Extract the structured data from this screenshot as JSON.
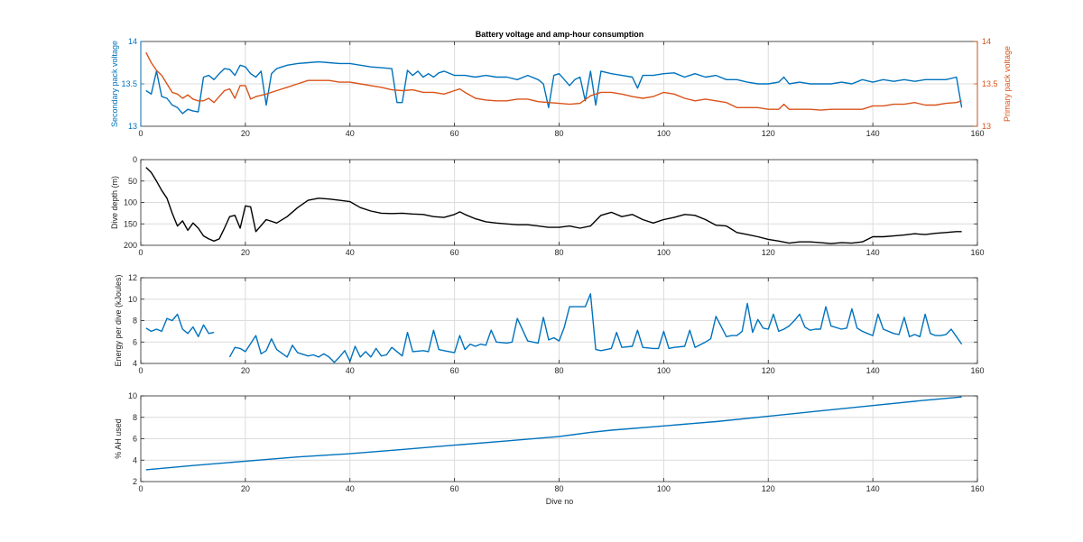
{
  "figure": {
    "title": "Battery voltage and amp-hour consumption",
    "xlabel": "Dive no"
  },
  "colors": {
    "secondary": "#0072BD",
    "primary": "#D95319",
    "depth": "#000000",
    "energy": "#0072BD",
    "ah": "#0072BD",
    "grid": "#dcdcdc",
    "axis": "#262626"
  },
  "chart_data": [
    {
      "type": "line",
      "title": "Battery voltage and amp-hour consumption",
      "xlabel": "",
      "ylabel": "Secondary pack voltage",
      "y2label": "Primary pack voltage",
      "xlim": [
        0,
        160
      ],
      "ylim": [
        13,
        14
      ],
      "y2lim": [
        13,
        14
      ],
      "xticks": [
        0,
        20,
        40,
        60,
        80,
        100,
        120,
        140,
        160
      ],
      "yticks": [
        13,
        13.5,
        14
      ],
      "yticklabels": [
        "13",
        "13.5",
        "14"
      ],
      "y2ticks": [
        13,
        13.5,
        14
      ],
      "y2ticklabels": [
        "13",
        "13.5",
        "14"
      ],
      "grid": true,
      "series": [
        {
          "axis": "left",
          "x": [
            1,
            2,
            3,
            4,
            5,
            6,
            7,
            8,
            9,
            10,
            11,
            12,
            13,
            14,
            15,
            16,
            17,
            18,
            19,
            20,
            21,
            22,
            23,
            24,
            25,
            26,
            28,
            30,
            32,
            34,
            36,
            38,
            40,
            42,
            44,
            46,
            48,
            49,
            50,
            51,
            52,
            53,
            54,
            55,
            56,
            57,
            58,
            60,
            62,
            64,
            66,
            68,
            70,
            72,
            74,
            76,
            77,
            78,
            79,
            80,
            81,
            82,
            83,
            84,
            85,
            86,
            87,
            88,
            90,
            92,
            94,
            95,
            96,
            98,
            100,
            102,
            104,
            106,
            108,
            110,
            112,
            114,
            116,
            118,
            120,
            122,
            123,
            124,
            126,
            128,
            130,
            132,
            134,
            136,
            138,
            140,
            142,
            144,
            146,
            148,
            150,
            152,
            154,
            156,
            157
          ],
          "y": [
            13.42,
            13.38,
            13.65,
            13.35,
            13.33,
            13.25,
            13.22,
            13.15,
            13.2,
            13.18,
            13.17,
            13.58,
            13.6,
            13.55,
            13.62,
            13.68,
            13.67,
            13.6,
            13.72,
            13.7,
            13.62,
            13.58,
            13.65,
            13.25,
            13.62,
            13.68,
            13.72,
            13.74,
            13.75,
            13.76,
            13.75,
            13.74,
            13.74,
            13.72,
            13.7,
            13.69,
            13.68,
            13.28,
            13.28,
            13.66,
            13.6,
            13.65,
            13.58,
            13.62,
            13.58,
            13.63,
            13.65,
            13.6,
            13.6,
            13.58,
            13.6,
            13.58,
            13.58,
            13.55,
            13.6,
            13.55,
            13.5,
            13.22,
            13.6,
            13.62,
            13.55,
            13.48,
            13.55,
            13.58,
            13.3,
            13.65,
            13.25,
            13.65,
            13.62,
            13.6,
            13.58,
            13.45,
            13.6,
            13.6,
            13.62,
            13.63,
            13.58,
            13.62,
            13.58,
            13.6,
            13.55,
            13.55,
            13.52,
            13.5,
            13.5,
            13.52,
            13.58,
            13.5,
            13.52,
            13.5,
            13.5,
            13.5,
            13.52,
            13.5,
            13.55,
            13.52,
            13.55,
            13.53,
            13.55,
            13.53,
            13.55,
            13.55,
            13.55,
            13.58,
            13.22
          ]
        },
        {
          "axis": "right",
          "x": [
            1,
            2,
            3,
            4,
            5,
            6,
            7,
            8,
            9,
            10,
            11,
            12,
            13,
            14,
            15,
            16,
            17,
            18,
            19,
            20,
            21,
            22,
            24,
            26,
            28,
            30,
            32,
            34,
            36,
            38,
            40,
            42,
            44,
            46,
            48,
            50,
            52,
            54,
            56,
            58,
            60,
            61,
            62,
            64,
            66,
            68,
            70,
            72,
            74,
            76,
            78,
            80,
            82,
            84,
            86,
            88,
            90,
            92,
            94,
            96,
            98,
            100,
            102,
            104,
            106,
            108,
            110,
            112,
            114,
            116,
            118,
            120,
            122,
            123,
            124,
            126,
            128,
            130,
            132,
            134,
            136,
            138,
            140,
            142,
            144,
            146,
            148,
            150,
            152,
            154,
            156,
            157
          ],
          "y": [
            13.87,
            13.75,
            13.66,
            13.6,
            13.5,
            13.4,
            13.38,
            13.33,
            13.37,
            13.32,
            13.3,
            13.3,
            13.33,
            13.28,
            13.35,
            13.42,
            13.44,
            13.33,
            13.48,
            13.48,
            13.32,
            13.35,
            13.38,
            13.42,
            13.46,
            13.5,
            13.54,
            13.54,
            13.54,
            13.52,
            13.52,
            13.5,
            13.48,
            13.46,
            13.43,
            13.42,
            13.43,
            13.4,
            13.4,
            13.38,
            13.42,
            13.44,
            13.4,
            13.33,
            13.31,
            13.3,
            13.3,
            13.32,
            13.32,
            13.29,
            13.28,
            13.27,
            13.26,
            13.27,
            13.36,
            13.4,
            13.4,
            13.38,
            13.35,
            13.33,
            13.35,
            13.4,
            13.38,
            13.33,
            13.3,
            13.32,
            13.3,
            13.28,
            13.22,
            13.22,
            13.22,
            13.2,
            13.2,
            13.26,
            13.2,
            13.2,
            13.2,
            13.19,
            13.2,
            13.2,
            13.2,
            13.2,
            13.24,
            13.24,
            13.26,
            13.26,
            13.28,
            13.25,
            13.25,
            13.27,
            13.28,
            13.3
          ]
        }
      ]
    },
    {
      "type": "line",
      "xlabel": "",
      "ylabel": "Dive depth (m)",
      "xlim": [
        0,
        160
      ],
      "ylim": [
        0,
        200
      ],
      "yreversed": true,
      "xticks": [
        0,
        20,
        40,
        60,
        80,
        100,
        120,
        140,
        160
      ],
      "yticks": [
        0,
        50,
        100,
        150,
        200
      ],
      "yticklabels": [
        "0",
        "50",
        "100",
        "150",
        "200"
      ],
      "grid": true,
      "series": [
        {
          "x": [
            1,
            2,
            3,
            4,
            5,
            6,
            7,
            8,
            9,
            10,
            11,
            12,
            13,
            14,
            15,
            16,
            17,
            18,
            19,
            20,
            21,
            22,
            24,
            26,
            28,
            30,
            32,
            34,
            36,
            38,
            40,
            42,
            44,
            46,
            48,
            50,
            52,
            54,
            56,
            58,
            60,
            61,
            62,
            64,
            66,
            68,
            70,
            72,
            74,
            76,
            78,
            80,
            82,
            84,
            86,
            88,
            90,
            92,
            94,
            96,
            98,
            100,
            102,
            104,
            106,
            108,
            110,
            112,
            114,
            116,
            118,
            120,
            122,
            124,
            126,
            128,
            130,
            132,
            134,
            136,
            138,
            140,
            142,
            144,
            146,
            148,
            150,
            152,
            154,
            156,
            157
          ],
          "y": [
            18,
            30,
            50,
            72,
            90,
            125,
            155,
            143,
            165,
            148,
            160,
            178,
            185,
            190,
            185,
            160,
            133,
            130,
            160,
            108,
            110,
            168,
            140,
            148,
            133,
            112,
            95,
            90,
            92,
            95,
            98,
            112,
            120,
            125,
            126,
            125,
            127,
            128,
            133,
            135,
            128,
            122,
            128,
            138,
            145,
            148,
            150,
            152,
            152,
            155,
            158,
            158,
            155,
            160,
            155,
            130,
            123,
            133,
            128,
            140,
            148,
            140,
            135,
            128,
            130,
            140,
            153,
            155,
            170,
            175,
            180,
            186,
            190,
            195,
            192,
            192,
            194,
            196,
            194,
            195,
            192,
            180,
            180,
            178,
            176,
            173,
            175,
            172,
            170,
            168,
            168
          ]
        }
      ]
    },
    {
      "type": "line",
      "xlabel": "",
      "ylabel": "Energy per dive (kJoules)",
      "xlim": [
        0,
        160
      ],
      "ylim": [
        4,
        12
      ],
      "xticks": [
        0,
        20,
        40,
        60,
        80,
        100,
        120,
        140,
        160
      ],
      "yticks": [
        4,
        6,
        8,
        10,
        12
      ],
      "yticklabels": [
        "4",
        "6",
        "8",
        "10",
        "12"
      ],
      "grid": true,
      "series": [
        {
          "segments": [
            {
              "x": [
                1,
                2,
                3,
                4,
                5,
                6,
                7,
                8,
                9,
                10,
                11,
                12,
                13,
                14
              ],
              "y": [
                7.3,
                7.0,
                7.2,
                7.0,
                8.2,
                8.0,
                8.6,
                7.2,
                6.8,
                7.4,
                6.5,
                7.6,
                6.8,
                6.9
              ]
            },
            {
              "x": [
                17,
                18,
                19,
                20,
                22,
                23,
                24,
                25,
                26,
                28,
                29,
                30,
                32,
                33,
                34,
                35,
                36,
                37,
                38,
                39,
                40,
                41,
                42,
                43,
                44,
                45,
                46,
                47,
                48,
                50,
                51,
                52,
                54,
                55,
                56,
                57,
                58,
                60,
                61,
                62,
                63,
                64,
                65,
                66,
                67,
                68,
                70,
                71,
                72,
                74,
                75,
                76,
                77,
                78,
                79,
                80,
                81,
                82,
                84,
                85,
                86,
                87,
                88,
                90,
                91,
                92,
                94,
                95,
                96,
                98,
                99,
                100,
                101,
                102,
                104,
                105,
                106,
                108,
                109,
                110,
                112,
                113,
                114,
                115,
                116,
                117,
                118,
                119,
                120,
                121,
                122,
                123,
                124,
                125,
                126,
                127,
                128,
                129,
                130,
                131,
                132,
                134,
                135,
                136,
                137,
                138,
                139,
                140,
                141,
                142,
                144,
                145,
                146,
                147,
                148,
                149,
                150,
                151,
                152,
                153,
                154,
                155,
                156,
                157
              ],
              "y": [
                4.6,
                5.5,
                5.4,
                5.1,
                6.6,
                4.9,
                5.2,
                6.3,
                5.3,
                4.6,
                5.7,
                5.0,
                4.7,
                4.8,
                4.6,
                4.9,
                4.6,
                4.1,
                4.6,
                5.2,
                4.2,
                5.6,
                4.6,
                5.1,
                4.6,
                5.4,
                4.7,
                4.8,
                5.5,
                4.7,
                6.9,
                5.1,
                5.2,
                5.1,
                7.1,
                5.3,
                5.2,
                5.0,
                6.6,
                5.3,
                5.8,
                5.6,
                5.8,
                5.7,
                7.1,
                6.0,
                5.9,
                6.0,
                8.2,
                6.1,
                6.0,
                5.9,
                8.3,
                6.2,
                6.4,
                6.1,
                7.4,
                9.3,
                9.3,
                9.3,
                10.5,
                5.3,
                5.2,
                5.4,
                6.9,
                5.5,
                5.6,
                7.1,
                5.5,
                5.4,
                5.4,
                7.0,
                5.4,
                5.5,
                5.6,
                7.1,
                5.5,
                6.0,
                6.3,
                8.4,
                6.5,
                6.6,
                6.6,
                7.0,
                9.6,
                6.9,
                8.1,
                7.3,
                7.2,
                8.6,
                7.0,
                7.2,
                7.5,
                8.0,
                8.6,
                7.4,
                7.1,
                7.2,
                7.2,
                9.3,
                7.5,
                7.2,
                7.3,
                9.1,
                7.3,
                7.0,
                6.8,
                6.6,
                8.6,
                7.2,
                6.8,
                6.7,
                8.3,
                6.5,
                6.7,
                6.5,
                8.6,
                6.8,
                6.6,
                6.6,
                6.7,
                7.2,
                6.5,
                5.8
              ]
            }
          ]
        }
      ]
    },
    {
      "type": "line",
      "xlabel": "Dive no",
      "ylabel": "% AH used",
      "xlim": [
        0,
        160
      ],
      "ylim": [
        2,
        10
      ],
      "xticks": [
        0,
        20,
        40,
        60,
        80,
        100,
        120,
        140,
        160
      ],
      "yticks": [
        2,
        4,
        6,
        8,
        10
      ],
      "yticklabels": [
        "2",
        "4",
        "6",
        "8",
        "10"
      ],
      "grid": true,
      "series": [
        {
          "x": [
            1,
            10,
            20,
            30,
            40,
            50,
            60,
            70,
            80,
            86,
            90,
            100,
            110,
            120,
            130,
            140,
            150,
            157
          ],
          "y": [
            3.1,
            3.5,
            3.9,
            4.3,
            4.6,
            5.0,
            5.4,
            5.8,
            6.2,
            6.6,
            6.8,
            7.2,
            7.6,
            8.1,
            8.6,
            9.1,
            9.6,
            9.9
          ]
        }
      ]
    }
  ]
}
